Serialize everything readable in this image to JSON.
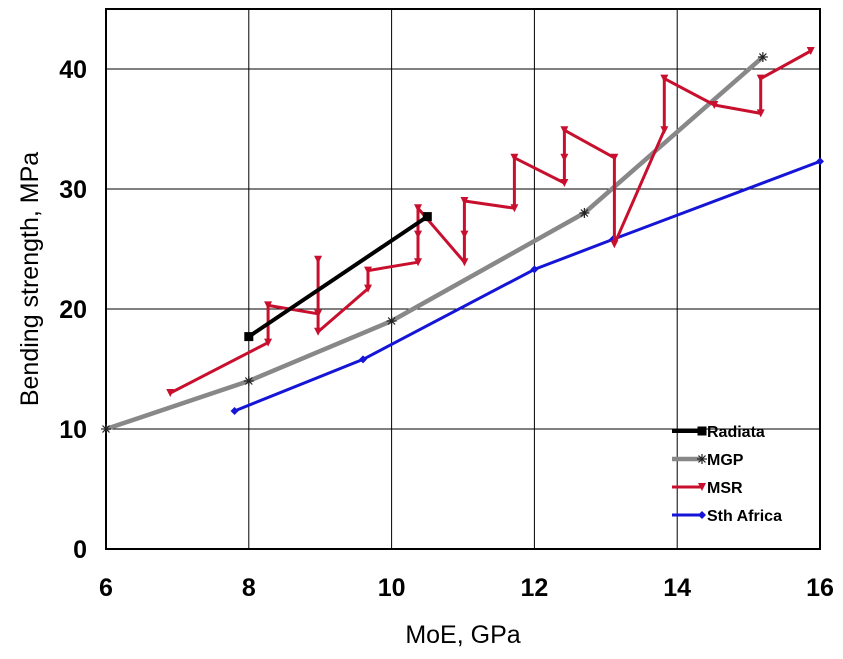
{
  "chart_data": {
    "type": "line",
    "xlabel": "MoE, GPa",
    "ylabel": "Bending strength, MPa",
    "xlim": [
      6,
      16
    ],
    "ylim": [
      0,
      45
    ],
    "xticks": [
      "6",
      "8",
      "10",
      "12",
      "14",
      "16"
    ],
    "yticks": [
      "0",
      "10",
      "20",
      "30",
      "40"
    ],
    "grid": true,
    "legend_position": "bottom-right",
    "series": [
      {
        "name": "Radiata",
        "color": "#000000",
        "marker": "square",
        "x": [
          8.0,
          10.5
        ],
        "y": [
          17.7,
          27.7
        ]
      },
      {
        "name": "MGP",
        "color": "#888888",
        "marker": "asterisk",
        "x": [
          6.0,
          8.0,
          10.0,
          12.7,
          15.2
        ],
        "y": [
          10.0,
          14.0,
          19.0,
          28.0,
          41.0
        ]
      },
      {
        "name": "MSR",
        "color": "#c8102e",
        "marker": "triangle-down",
        "x": [
          6.9,
          8.27,
          8.27,
          8.97,
          8.97,
          8.97,
          9.67,
          9.67,
          10.37,
          10.37,
          10.37,
          11.02,
          11.02,
          11.02,
          11.72,
          11.72,
          12.42,
          12.42,
          12.42,
          13.12,
          13.12,
          13.82,
          13.82,
          14.52,
          15.17,
          15.17,
          15.87
        ],
        "y": [
          13.0,
          17.2,
          20.3,
          19.6,
          24.1,
          18.1,
          21.7,
          23.2,
          23.9,
          26.2,
          28.4,
          23.9,
          26.2,
          29.0,
          28.4,
          32.6,
          30.5,
          32.6,
          34.9,
          32.6,
          25.4,
          34.9,
          39.2,
          37.0,
          36.3,
          39.2,
          41.5
        ]
      },
      {
        "name": "Sth Africa",
        "color": "#1515d8",
        "marker": "diamond",
        "x": [
          7.8,
          9.6,
          12.0,
          13.1,
          16.0
        ],
        "y": [
          11.5,
          15.8,
          23.3,
          25.8,
          32.3
        ]
      }
    ]
  }
}
